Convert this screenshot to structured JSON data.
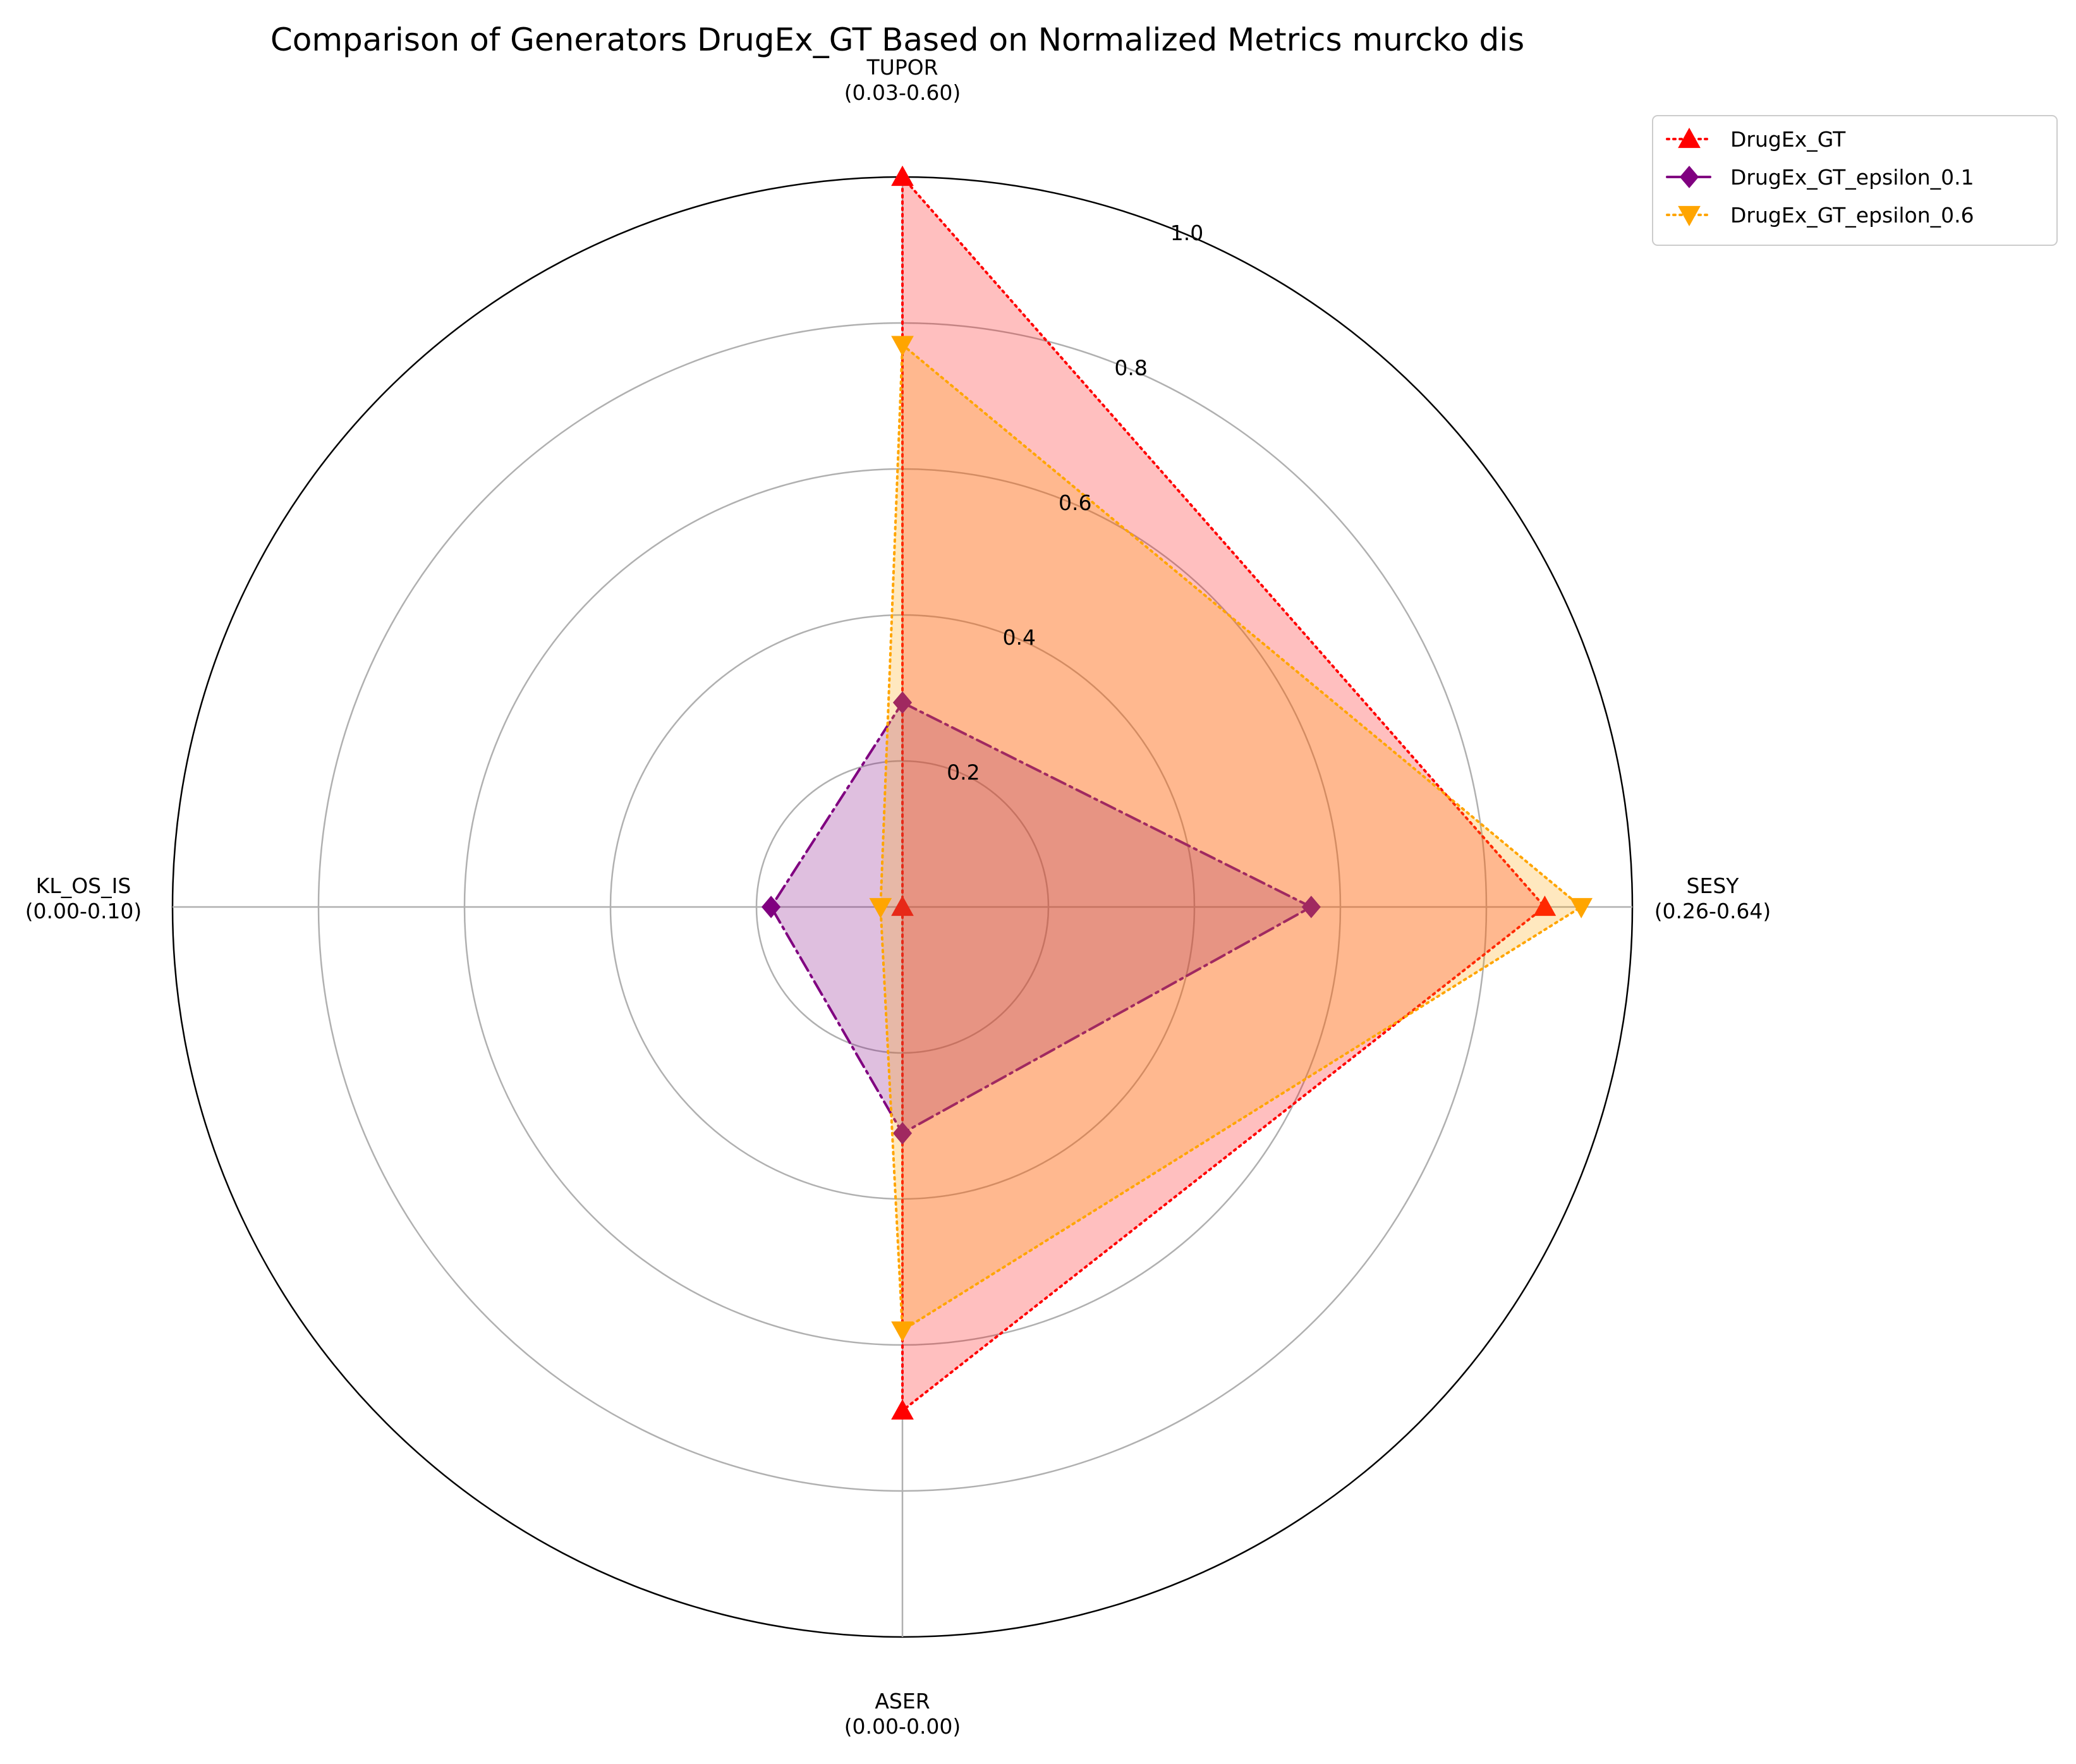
{
  "chart_data": {
    "type": "radar",
    "title": "Comparison of Generators DrugEx_GT Based on Normalized Metrics murcko dis",
    "axes": [
      {
        "name": "TUPOR",
        "range": "(0.03-0.60)"
      },
      {
        "name": "SESY",
        "range": "(0.26-0.64)"
      },
      {
        "name": "ASER",
        "range": "(0.00-0.00)"
      },
      {
        "name": "KL_OS_IS",
        "range": "(0.00-0.10)"
      }
    ],
    "radial_ticks": [
      "0.2",
      "0.4",
      "0.6",
      "0.8",
      "1.0"
    ],
    "rlim": [
      0,
      1
    ],
    "grid": true,
    "legend_position": "top-right",
    "series": [
      {
        "name": "DrugEx_GT",
        "values": [
          1.0,
          0.88,
          0.69,
          0.0
        ],
        "color": "#ff0000",
        "fill": "#ff0000",
        "fill_opacity": 0.25,
        "marker": "triangle-up",
        "dash": "3,7"
      },
      {
        "name": "DrugEx_GT_epsilon_0.1",
        "values": [
          0.28,
          0.56,
          0.31,
          0.18
        ],
        "color": "#800080",
        "fill": "#800080",
        "fill_opacity": 0.25,
        "marker": "diamond",
        "dash": "24,8,4,8"
      },
      {
        "name": "DrugEx_GT_epsilon_0.6",
        "values": [
          0.77,
          0.93,
          0.58,
          0.03
        ],
        "color": "#ffa500",
        "fill": "#ffa500",
        "fill_opacity": 0.25,
        "marker": "triangle-down",
        "dash": "3,7"
      }
    ]
  }
}
